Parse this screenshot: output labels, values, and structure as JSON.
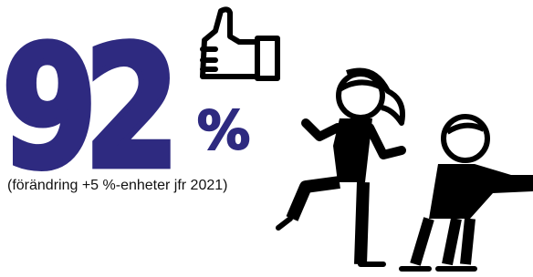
{
  "stat": {
    "value": 92,
    "unit": "%",
    "note": "(förändring +5 %-enheter jfr 2021)"
  }
}
